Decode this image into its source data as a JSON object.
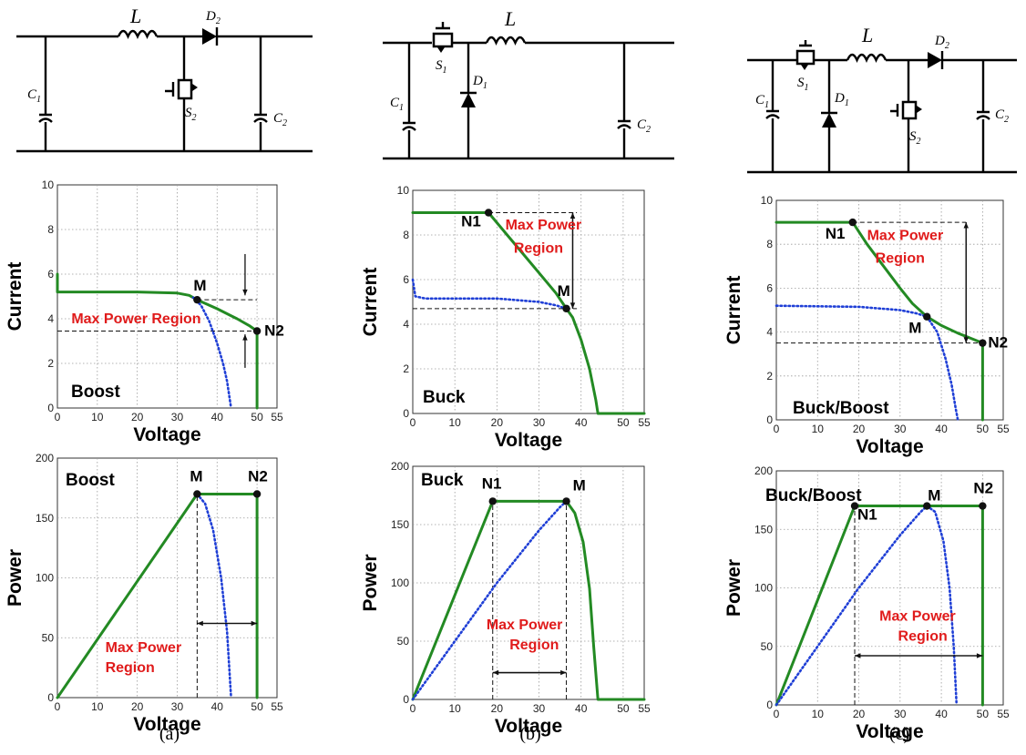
{
  "panels": [
    {
      "caption": "(a)",
      "circuit": {
        "L": "L",
        "D2": "D",
        "D2_sub": "2",
        "S2": "S",
        "S2_sub": "2",
        "C1": "C",
        "C1_sub": "1",
        "C2": "C",
        "C2_sub": "2"
      },
      "iv_label": "Boost",
      "pv_label": "Boost"
    },
    {
      "caption": "(b)",
      "circuit": {
        "L": "L",
        "S1": "S",
        "S1_sub": "1",
        "D1": "D",
        "D1_sub": "1",
        "C1": "C",
        "C1_sub": "1",
        "C2": "C",
        "C2_sub": "2"
      },
      "iv_label": "Buck",
      "pv_label": "Buck"
    },
    {
      "caption": "(c)",
      "circuit": {
        "L": "L",
        "S1": "S",
        "S1_sub": "1",
        "D1": "D",
        "D1_sub": "1",
        "D2": "D",
        "D2_sub": "2",
        "S2": "S",
        "S2_sub": "2",
        "C1": "C",
        "C1_sub": "1",
        "C2": "C",
        "C2_sub": "2"
      },
      "iv_label": "Buck/Boost",
      "pv_label": "Buck/Boost"
    }
  ],
  "chart_data": [
    {
      "id": "iv-boost",
      "type": "line",
      "xlabel": "Voltage",
      "ylabel": "Current",
      "xlim": [
        0,
        55
      ],
      "ylim": [
        0,
        10
      ],
      "xticks": [
        0,
        10,
        20,
        30,
        40,
        50,
        55
      ],
      "yticks": [
        0,
        2,
        4,
        6,
        8,
        10
      ],
      "grid": true,
      "series": [
        {
          "style": "solid-green",
          "points": [
            [
              0,
              6.0
            ],
            [
              0,
              5.2
            ],
            [
              20,
              5.2
            ],
            [
              30,
              5.15
            ],
            [
              33,
              5.05
            ],
            [
              35,
              4.85
            ],
            [
              40,
              4.45
            ],
            [
              45,
              4.0
            ],
            [
              48,
              3.7
            ],
            [
              50,
              3.45
            ],
            [
              50,
              0
            ]
          ]
        },
        {
          "style": "dotted-blue",
          "points": [
            [
              34,
              4.95
            ],
            [
              36,
              4.6
            ],
            [
              38,
              3.9
            ],
            [
              40,
              2.9
            ],
            [
              41.5,
              2.0
            ],
            [
              42.5,
              1.2
            ],
            [
              43.5,
              0
            ]
          ]
        }
      ],
      "markers": [
        {
          "label": "M",
          "x": 35,
          "y": 4.85
        },
        {
          "label": "N2",
          "x": 50,
          "y": 3.45
        }
      ],
      "region_label": "Max Power Region"
    },
    {
      "id": "iv-buck",
      "type": "line",
      "xlabel": "Voltage",
      "ylabel": "Current",
      "xlim": [
        0,
        55
      ],
      "ylim": [
        0,
        10
      ],
      "xticks": [
        0,
        10,
        20,
        30,
        40,
        50,
        55
      ],
      "yticks": [
        0,
        2,
        4,
        6,
        8,
        10
      ],
      "grid": true,
      "series": [
        {
          "style": "solid-green",
          "points": [
            [
              0,
              9.0
            ],
            [
              18,
              9.0
            ],
            [
              22,
              8.1
            ],
            [
              26,
              7.2
            ],
            [
              30,
              6.3
            ],
            [
              34,
              5.4
            ],
            [
              36.5,
              4.7
            ],
            [
              38,
              4.3
            ],
            [
              40,
              3.3
            ],
            [
              42,
              2.0
            ],
            [
              43.5,
              0.6
            ],
            [
              44,
              0
            ],
            [
              55,
              0
            ]
          ]
        },
        {
          "style": "dotted-blue",
          "points": [
            [
              0,
              6.0
            ],
            [
              0.6,
              5.25
            ],
            [
              3,
              5.15
            ],
            [
              20,
              5.15
            ],
            [
              30,
              5.0
            ],
            [
              34,
              4.85
            ],
            [
              36.5,
              4.7
            ]
          ]
        }
      ],
      "markers": [
        {
          "label": "N1",
          "x": 18,
          "y": 9.0
        },
        {
          "label": "M",
          "x": 36.5,
          "y": 4.7
        }
      ],
      "region_label": "Max Power Region"
    },
    {
      "id": "iv-buckboost",
      "type": "line",
      "xlabel": "Voltage",
      "ylabel": "Current",
      "xlim": [
        0,
        55
      ],
      "ylim": [
        0,
        10
      ],
      "xticks": [
        0,
        10,
        20,
        30,
        40,
        50,
        55
      ],
      "yticks": [
        0,
        2,
        4,
        6,
        8,
        10
      ],
      "grid": true,
      "series": [
        {
          "style": "solid-green",
          "points": [
            [
              0,
              9.0
            ],
            [
              18.5,
              9.0
            ],
            [
              22,
              8.0
            ],
            [
              26,
              7.0
            ],
            [
              30,
              6.0
            ],
            [
              33,
              5.3
            ],
            [
              36.5,
              4.7
            ],
            [
              40,
              4.3
            ],
            [
              44,
              3.95
            ],
            [
              48,
              3.65
            ],
            [
              50,
              3.5
            ],
            [
              50,
              0
            ]
          ]
        },
        {
          "style": "dotted-blue",
          "points": [
            [
              0,
              5.2
            ],
            [
              20,
              5.15
            ],
            [
              30,
              5.0
            ],
            [
              34,
              4.85
            ],
            [
              36.5,
              4.7
            ],
            [
              39,
              4.0
            ],
            [
              41,
              2.8
            ],
            [
              42.5,
              1.6
            ],
            [
              43.5,
              0.5
            ],
            [
              44,
              0
            ]
          ]
        }
      ],
      "markers": [
        {
          "label": "N1",
          "x": 18.5,
          "y": 9.0
        },
        {
          "label": "M",
          "x": 36.5,
          "y": 4.7
        },
        {
          "label": "N2",
          "x": 50,
          "y": 3.5
        }
      ],
      "region_label": "Max Power Region"
    },
    {
      "id": "pv-boost",
      "type": "line",
      "xlabel": "Voltage",
      "ylabel": "Power",
      "xlim": [
        0,
        55
      ],
      "ylim": [
        0,
        200
      ],
      "xticks": [
        0,
        10,
        20,
        30,
        40,
        50,
        55
      ],
      "yticks": [
        0,
        50,
        100,
        150,
        200
      ],
      "grid": true,
      "series": [
        {
          "style": "solid-green",
          "points": [
            [
              0,
              0
            ],
            [
              35,
              170
            ],
            [
              50,
              170
            ],
            [
              50,
              0
            ]
          ]
        },
        {
          "style": "dotted-blue",
          "points": [
            [
              35,
              170
            ],
            [
              37,
              162
            ],
            [
              39,
              140
            ],
            [
              41,
              100
            ],
            [
              42.5,
              55
            ],
            [
              43.5,
              0
            ]
          ]
        }
      ],
      "markers": [
        {
          "label": "M",
          "x": 35,
          "y": 170
        },
        {
          "label": "N2",
          "x": 50,
          "y": 170
        }
      ],
      "region_label": "Max Power Region"
    },
    {
      "id": "pv-buck",
      "type": "line",
      "xlabel": "Voltage",
      "ylabel": "Power",
      "xlim": [
        0,
        55
      ],
      "ylim": [
        0,
        200
      ],
      "xticks": [
        0,
        10,
        20,
        30,
        40,
        50,
        55
      ],
      "yticks": [
        0,
        50,
        100,
        150,
        200
      ],
      "grid": true,
      "series": [
        {
          "style": "solid-green",
          "points": [
            [
              0,
              0
            ],
            [
              19,
              170
            ],
            [
              36.5,
              170
            ],
            [
              38.5,
              160
            ],
            [
              40.5,
              135
            ],
            [
              42,
              95
            ],
            [
              43,
              45
            ],
            [
              44,
              0
            ],
            [
              55,
              0
            ]
          ]
        },
        {
          "style": "dotted-blue",
          "points": [
            [
              0,
              0
            ],
            [
              10,
              50
            ],
            [
              20,
              100
            ],
            [
              30,
              145
            ],
            [
              35,
              165
            ],
            [
              36.5,
              170
            ]
          ]
        }
      ],
      "markers": [
        {
          "label": "N1",
          "x": 19,
          "y": 170
        },
        {
          "label": "M",
          "x": 36.5,
          "y": 170
        }
      ],
      "region_label": "Max Power Region"
    },
    {
      "id": "pv-buckboost",
      "type": "line",
      "xlabel": "Voltage",
      "ylabel": "Power",
      "xlim": [
        0,
        55
      ],
      "ylim": [
        0,
        200
      ],
      "xticks": [
        0,
        10,
        20,
        30,
        40,
        50,
        55
      ],
      "yticks": [
        0,
        50,
        100,
        150,
        200
      ],
      "grid": true,
      "series": [
        {
          "style": "solid-green",
          "points": [
            [
              0,
              0
            ],
            [
              19,
              170
            ],
            [
              50,
              170
            ],
            [
              50,
              0
            ]
          ]
        },
        {
          "style": "dotted-blue",
          "points": [
            [
              0,
              0
            ],
            [
              10,
              50
            ],
            [
              20,
              100
            ],
            [
              30,
              145
            ],
            [
              35,
              165
            ],
            [
              36.5,
              170
            ],
            [
              38.5,
              165
            ],
            [
              40.5,
              140
            ],
            [
              42,
              100
            ],
            [
              43,
              50
            ],
            [
              43.7,
              0
            ]
          ]
        }
      ],
      "markers": [
        {
          "label": "N1",
          "x": 19,
          "y": 170
        },
        {
          "label": "M",
          "x": 36.5,
          "y": 170
        },
        {
          "label": "N2",
          "x": 50,
          "y": 170
        }
      ],
      "region_label": "Max Power Region"
    }
  ]
}
